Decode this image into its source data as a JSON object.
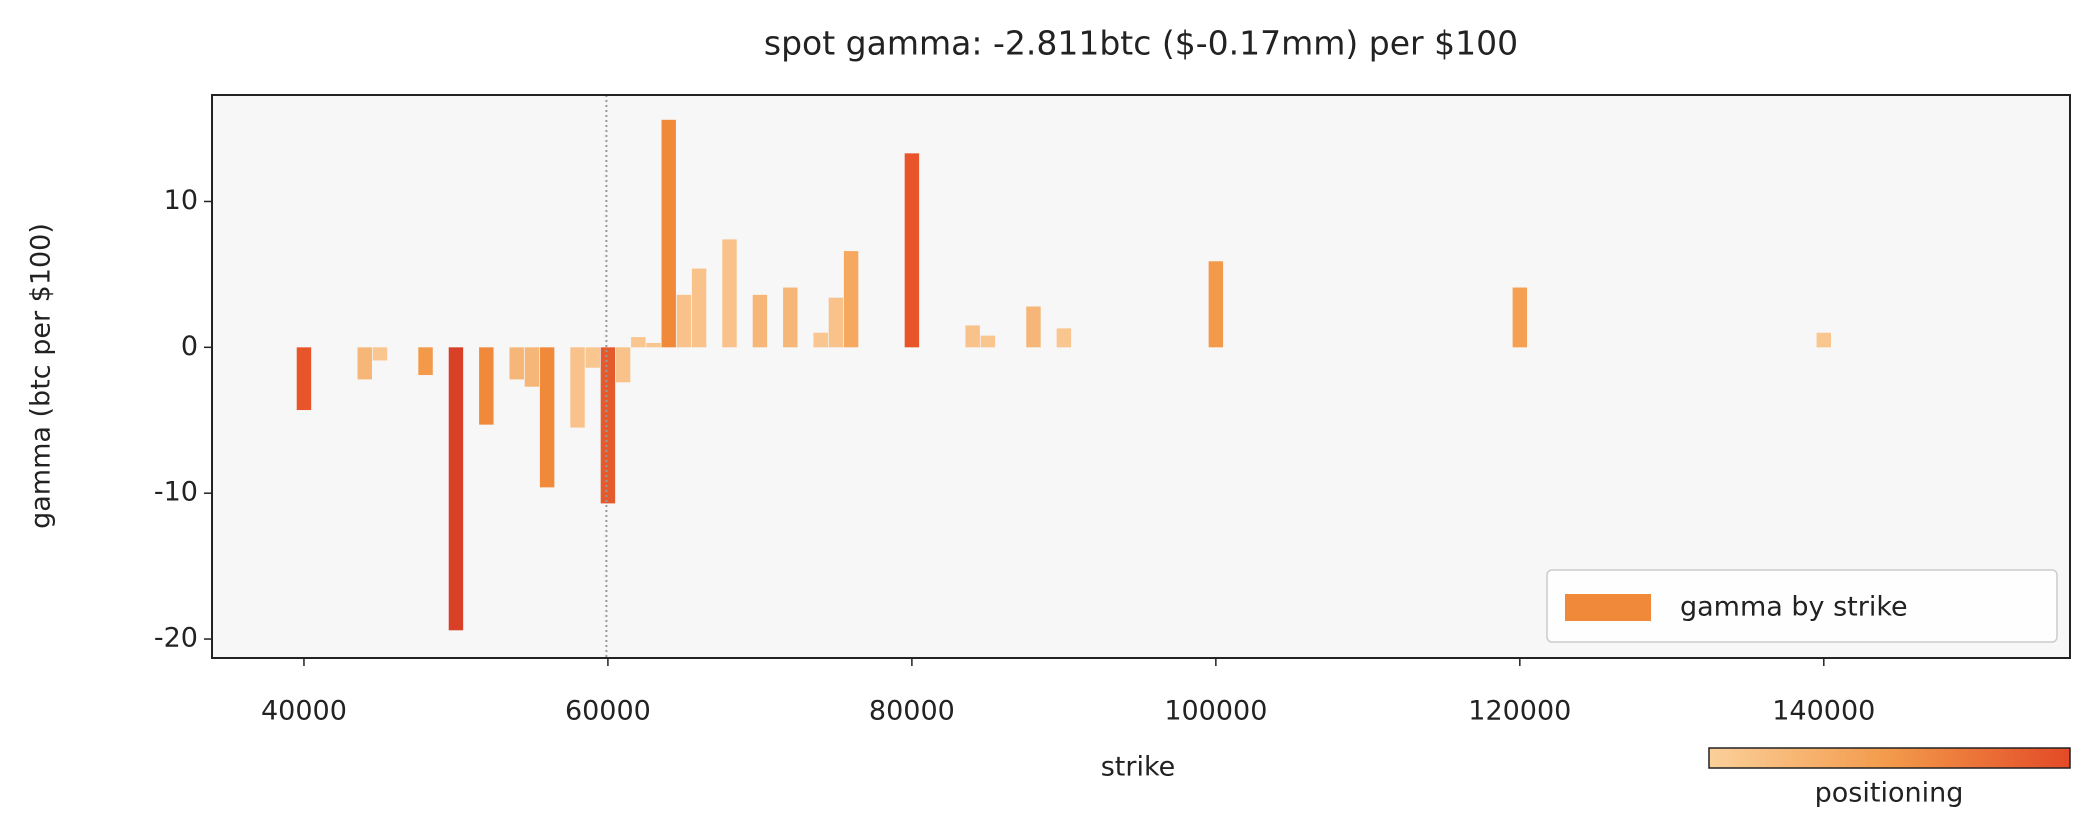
{
  "chart_data": {
    "type": "bar",
    "title": "spot gamma: -2.811btc ($-0.17mm) per $100",
    "x_label": "strike",
    "y_label": "gamma (btc per $100)",
    "x": [
      40000,
      44000,
      45000,
      48000,
      50000,
      52000,
      54000,
      55000,
      56000,
      58000,
      59000,
      60000,
      61000,
      62000,
      63000,
      64000,
      65000,
      66000,
      68000,
      70000,
      72000,
      74000,
      75000,
      76000,
      80000,
      84000,
      85000,
      88000,
      90000,
      100000,
      120000,
      140000
    ],
    "series": [
      {
        "name": "gamma by strike",
        "color": "#f08a3a",
        "values": [
          -4.3,
          -2.2,
          -0.9,
          -1.9,
          -19.4,
          -5.3,
          -2.2,
          -2.7,
          -9.6,
          -5.5,
          -1.4,
          -10.7,
          -2.4,
          0.7,
          0.3,
          15.6,
          3.6,
          5.4,
          7.4,
          3.6,
          4.1,
          1.0,
          3.4,
          6.6,
          13.3,
          1.5,
          0.8,
          2.8,
          1.3,
          5.9,
          4.1,
          1.0
        ],
        "colors": [
          "#e8552a",
          "#f6b678",
          "#f8c68e",
          "#f39a4a",
          "#d84128",
          "#f08a3a",
          "#f6b678",
          "#f6b678",
          "#f08a3a",
          "#f8c28a",
          "#f8c68e",
          "#e35a2c",
          "#f8c28a",
          "#f8c68e",
          "#f8c68e",
          "#f08a3a",
          "#f8c28a",
          "#f8c28a",
          "#f8c28a",
          "#f6b678",
          "#f6b678",
          "#f8c68e",
          "#f8c28a",
          "#f6a95e",
          "#e8552a",
          "#f8c28a",
          "#f8c68e",
          "#f6b678",
          "#f8c68e",
          "#f39a4a",
          "#f5a050",
          "#f8c68e"
        ]
      }
    ],
    "xlim": [
      33950,
      156200
    ],
    "xticks": [
      40000,
      60000,
      80000,
      100000,
      120000,
      140000
    ],
    "ylim": [
      -21.3,
      17.3
    ],
    "yticks": [
      -20,
      -10,
      0,
      10
    ],
    "vlines": [
      59900
    ],
    "legend": "lower right",
    "colorbar": {
      "label": "positioning",
      "colors": [
        "#fbd09a",
        "#f39a4a",
        "#e34a26"
      ]
    }
  }
}
